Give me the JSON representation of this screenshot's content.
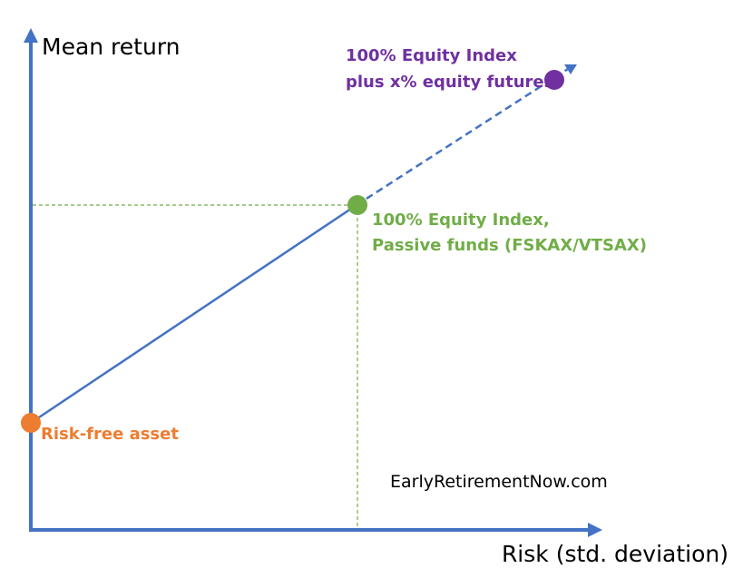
{
  "axes": {
    "y_label": "Mean return",
    "x_label": "Risk (std. deviation)"
  },
  "points": {
    "risk_free": {
      "label": "Risk-free asset",
      "color": "#ED7D31"
    },
    "equity_index": {
      "label_line1": "100% Equity Index,",
      "label_line2": "Passive funds (FSKAX/VTSAX)",
      "color": "#70AD47"
    },
    "leveraged_equity": {
      "label_line1": "100% Equity Index",
      "label_line2": "plus x% equity futures",
      "color": "#7030A0"
    }
  },
  "colors": {
    "axis": "#4472C4",
    "line": "#4472C4",
    "guide": "#70AD47"
  },
  "watermark": "EarlyRetirementNow.com"
}
